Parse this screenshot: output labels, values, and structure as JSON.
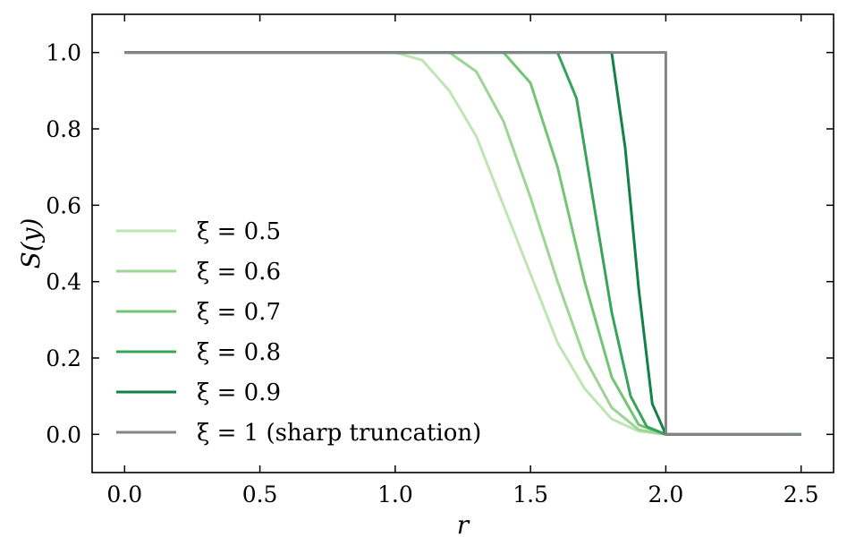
{
  "chart_data": {
    "type": "line",
    "xlabel": "r",
    "ylabel": "S(y)",
    "xlim": [
      -0.12,
      2.62
    ],
    "ylim": [
      -0.1,
      1.1
    ],
    "xticks": [
      0.0,
      0.5,
      1.0,
      1.5,
      2.0,
      2.5
    ],
    "xtick_labels": [
      "0.0",
      "0.5",
      "1.0",
      "1.5",
      "2.0",
      "2.5"
    ],
    "yticks": [
      0.0,
      0.2,
      0.4,
      0.6,
      0.8,
      1.0
    ],
    "ytick_labels": [
      "0.0",
      "0.2",
      "0.4",
      "0.6",
      "0.8",
      "1.0"
    ],
    "grid": false,
    "legend_position": "center-left",
    "series": [
      {
        "name": "ξ = 0.5",
        "color": "#bfe5b3",
        "xi": 0.5,
        "x": [
          0.0,
          1.0,
          1.1,
          1.2,
          1.3,
          1.4,
          1.5,
          1.6,
          1.7,
          1.8,
          1.9,
          2.0,
          2.5
        ],
        "y": [
          1.0,
          1.0,
          0.98,
          0.9,
          0.78,
          0.6,
          0.42,
          0.24,
          0.12,
          0.04,
          0.008,
          0.0,
          0.0
        ]
      },
      {
        "name": "ξ = 0.6",
        "color": "#9ed496",
        "xi": 0.6,
        "x": [
          0.0,
          1.2,
          1.3,
          1.4,
          1.5,
          1.6,
          1.7,
          1.8,
          1.9,
          2.0,
          2.5
        ],
        "y": [
          1.0,
          1.0,
          0.95,
          0.82,
          0.62,
          0.4,
          0.2,
          0.07,
          0.012,
          0.0,
          0.0
        ]
      },
      {
        "name": "ξ = 0.7",
        "color": "#74c476",
        "xi": 0.7,
        "x": [
          0.0,
          1.4,
          1.5,
          1.6,
          1.7,
          1.8,
          1.9,
          2.0,
          2.5
        ],
        "y": [
          1.0,
          1.0,
          0.92,
          0.7,
          0.4,
          0.15,
          0.025,
          0.0,
          0.0
        ]
      },
      {
        "name": "ξ = 0.8",
        "color": "#38a45a",
        "xi": 0.8,
        "x": [
          0.0,
          1.6,
          1.67,
          1.73,
          1.8,
          1.87,
          1.93,
          2.0,
          2.5
        ],
        "y": [
          1.0,
          1.0,
          0.88,
          0.62,
          0.32,
          0.1,
          0.02,
          0.0,
          0.0
        ]
      },
      {
        "name": "ξ = 0.9",
        "color": "#13804a",
        "xi": 0.9,
        "x": [
          0.0,
          1.8,
          1.85,
          1.9,
          1.95,
          2.0,
          2.5
        ],
        "y": [
          1.0,
          1.0,
          0.75,
          0.38,
          0.08,
          0.0,
          0.0
        ]
      },
      {
        "name": "ξ = 1 (sharp truncation)",
        "color": "#848484",
        "xi": 1.0,
        "x": [
          0.0,
          2.0,
          2.0,
          2.5
        ],
        "y": [
          1.0,
          1.0,
          0.0,
          0.0
        ]
      }
    ]
  }
}
